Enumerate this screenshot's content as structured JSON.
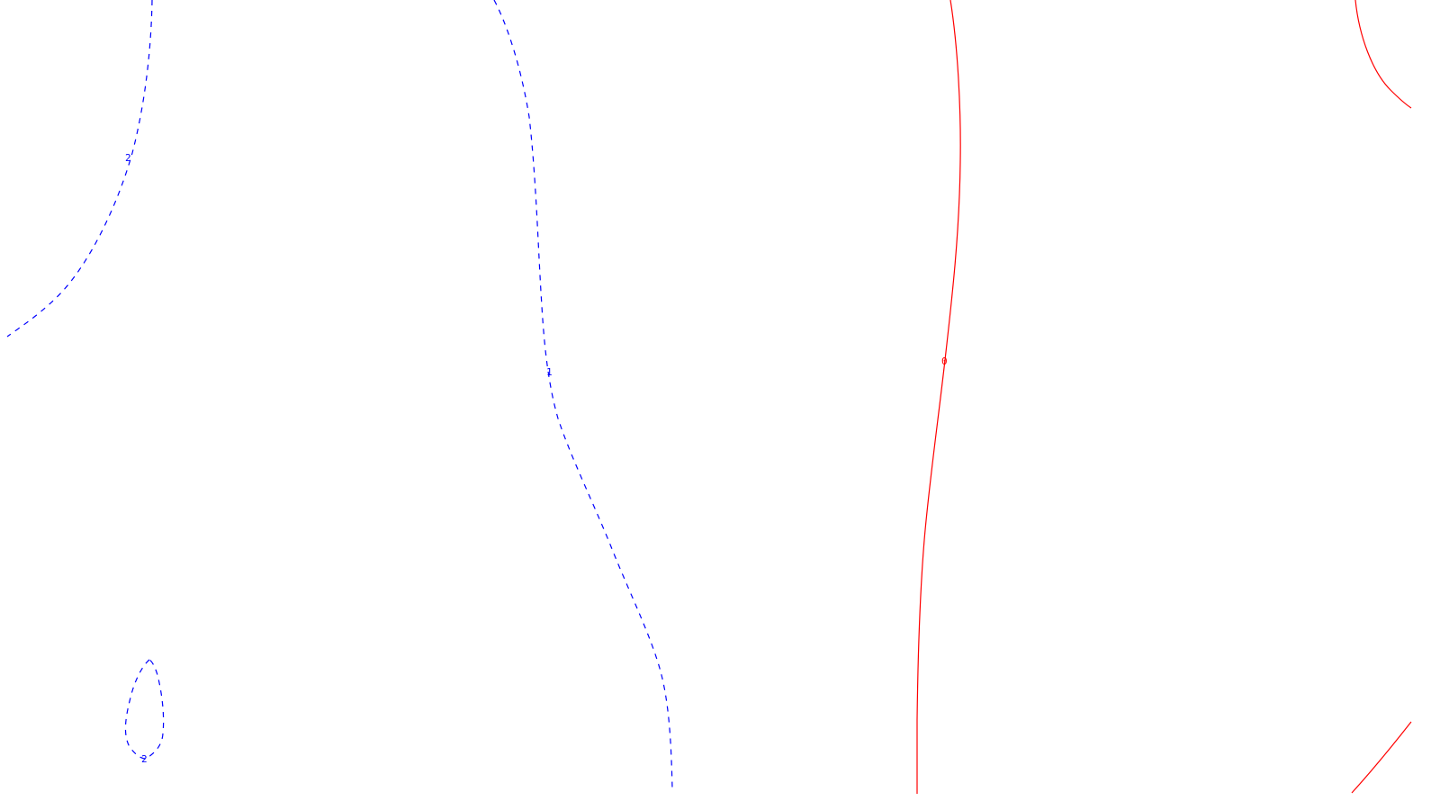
{
  "contours": [
    {
      "id": "c-left-top",
      "label": "2",
      "color": "#0000ff",
      "style": "dashed"
    },
    {
      "id": "c-left-loop",
      "label": "2",
      "color": "#0000ff",
      "style": "dashed"
    },
    {
      "id": "c-middle",
      "label": "1",
      "color": "#0000ff",
      "style": "dashed"
    },
    {
      "id": "c-zero",
      "label": "0",
      "color": "#ff0000",
      "style": "solid"
    },
    {
      "id": "c-right-top",
      "label": "",
      "color": "#ff0000",
      "style": "solid"
    },
    {
      "id": "c-right-bottom",
      "label": "",
      "color": "#ff0000",
      "style": "solid"
    }
  ]
}
